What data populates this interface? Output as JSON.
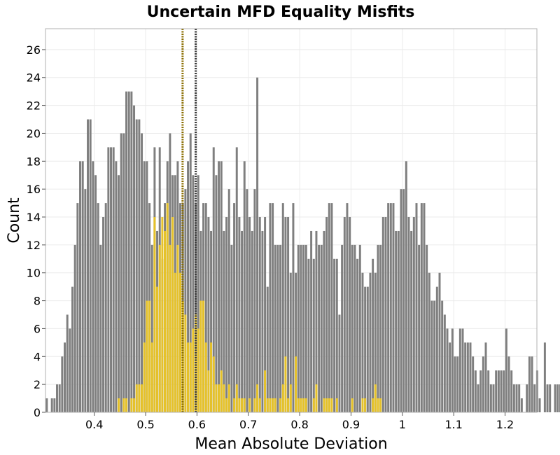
{
  "chart_data": {
    "type": "bar",
    "title": "Uncertain MFD Equality Misfits",
    "xlabel": "Mean Absolute Deviation",
    "ylabel": "Count",
    "xlim": [
      0.305,
      1.262
    ],
    "ylim": [
      0,
      27.5
    ],
    "bin_width": 0.005,
    "x_ticks": [
      0.4,
      0.5,
      0.6,
      0.7,
      0.8,
      0.9,
      1,
      1.1,
      1.2
    ],
    "y_ticks": [
      0,
      2,
      4,
      6,
      8,
      10,
      12,
      14,
      16,
      18,
      20,
      22,
      24,
      26
    ],
    "grid": true,
    "colors": {
      "gray": "#7f7f7f",
      "gold": "#e6c229",
      "gray_line": "#3a3a3a",
      "gold_line": "#8a6d00"
    },
    "series": [
      {
        "x_start": 0.305,
        "counts": [
          1,
          0,
          1,
          1,
          2,
          2,
          4,
          5,
          7,
          6,
          9,
          12,
          15,
          18,
          18,
          16,
          21,
          21,
          18,
          17,
          15,
          12,
          14,
          15,
          19,
          19,
          19,
          18,
          17,
          20,
          20,
          23,
          23,
          23,
          22,
          21,
          21,
          20,
          18,
          18,
          15,
          12,
          19,
          13,
          19,
          11,
          15,
          18,
          20,
          17,
          17,
          18,
          15,
          15,
          16,
          18,
          20,
          17,
          15,
          17,
          13,
          15,
          15,
          14,
          13,
          19,
          17,
          18,
          18,
          13,
          14,
          16,
          12,
          15,
          19,
          14,
          13,
          18,
          16,
          14,
          13,
          16,
          24,
          14,
          13,
          14,
          9,
          15,
          15,
          12,
          12,
          12,
          15,
          14,
          14,
          10,
          15,
          10,
          12,
          12,
          12,
          12,
          11,
          13,
          11,
          13,
          12,
          12,
          13,
          14,
          15,
          15,
          11,
          11,
          7,
          12,
          14,
          15,
          14,
          12,
          12,
          11,
          12,
          10,
          9,
          9,
          10,
          11,
          10,
          12,
          12,
          14,
          14,
          15,
          15,
          15,
          13,
          13,
          16,
          16,
          18,
          14,
          13,
          14,
          15,
          12,
          15,
          15,
          12,
          10,
          8,
          8,
          9,
          10,
          8,
          7,
          6,
          5,
          6,
          4,
          4,
          6,
          6,
          5,
          5,
          5,
          4,
          3,
          2,
          3,
          4,
          5,
          3,
          2,
          2,
          3,
          3,
          3,
          3,
          6,
          4,
          3,
          2,
          2,
          2,
          1,
          0,
          2,
          4,
          4,
          2,
          3,
          1,
          0,
          5,
          2,
          2,
          0,
          2,
          2,
          2,
          3,
          1,
          1,
          0,
          2,
          0,
          4,
          4,
          3,
          1,
          2,
          4,
          3,
          2,
          2,
          4,
          4,
          0,
          0,
          0,
          3,
          0,
          0,
          1,
          0,
          1,
          1,
          1,
          0,
          2,
          1,
          0,
          0,
          0,
          1,
          0,
          0,
          0,
          1,
          1,
          0,
          0,
          0,
          0,
          0,
          1,
          0,
          0
        ],
        "mean": 0.5975
      },
      {
        "x_start": 0.445,
        "counts": [
          1,
          0,
          1,
          1,
          0,
          1,
          1,
          2,
          2,
          2,
          5,
          8,
          8,
          5,
          14,
          9,
          12,
          14,
          13,
          15,
          12,
          14,
          10,
          12,
          10,
          8,
          7,
          5,
          5,
          6,
          7,
          6,
          8,
          8,
          5,
          3,
          5,
          4,
          2,
          2,
          3,
          2,
          1,
          2,
          0,
          1,
          2,
          1,
          1,
          1,
          0,
          1,
          0,
          1,
          2,
          1,
          0,
          3,
          1,
          1,
          1,
          1,
          0,
          1,
          2,
          4,
          1,
          2,
          0,
          4,
          1,
          1,
          1,
          1,
          0,
          0,
          1,
          2,
          0,
          0,
          1,
          1,
          1,
          1,
          0,
          1,
          0,
          0,
          0,
          0,
          0,
          1,
          0,
          0,
          0,
          1,
          1,
          0,
          0,
          1,
          2,
          1,
          1,
          0,
          0,
          0,
          0,
          0,
          0,
          0,
          0
        ],
        "mean": 0.572
      }
    ]
  }
}
